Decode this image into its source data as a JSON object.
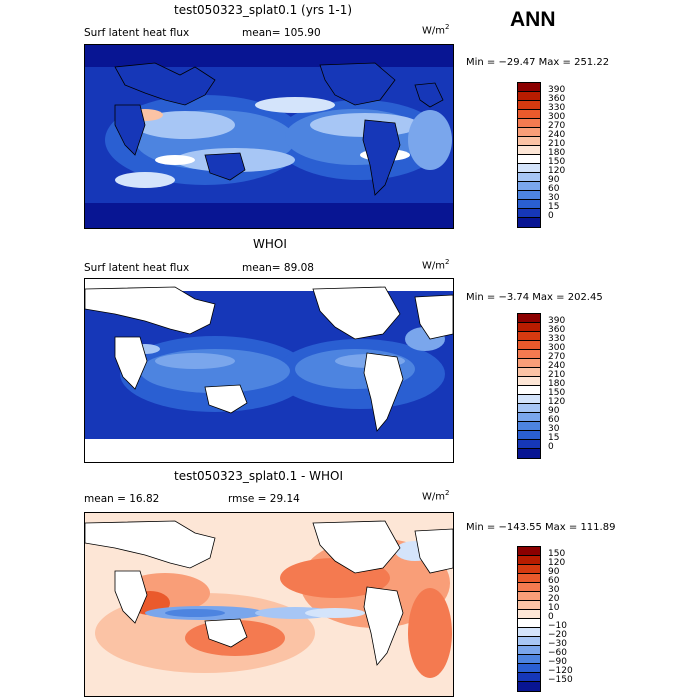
{
  "season": "ANN",
  "units_base": "W/m",
  "units_exp": "2",
  "panels": [
    {
      "title": "test050323_splat0.1 (yrs 1-1)",
      "variable": "Surf latent heat flux",
      "stat_line": "mean= 105.90",
      "minmax": "Min = −29.47 Max = 251.22",
      "colorbar": {
        "levels": [
          "390",
          "360",
          "330",
          "300",
          "270",
          "240",
          "210",
          "180",
          "150",
          "120",
          "90",
          "60",
          "30",
          "15",
          "0"
        ],
        "colors": [
          "#8b0000",
          "#b81c00",
          "#d63a10",
          "#ea5a2c",
          "#f47a50",
          "#f99e78",
          "#fbc3a5",
          "#fde6d6",
          "#ffffff",
          "#d4e4fb",
          "#a7c6f5",
          "#7aa6ec",
          "#4d84e0",
          "#2a5fd2",
          "#1637b8",
          "#081593"
        ]
      }
    },
    {
      "title": "WHOI",
      "variable": "Surf latent heat flux",
      "stat_line": "mean=  89.08",
      "minmax": "Min =  −3.74 Max = 202.45",
      "colorbar": {
        "levels": [
          "390",
          "360",
          "330",
          "300",
          "270",
          "240",
          "210",
          "180",
          "150",
          "120",
          "90",
          "60",
          "30",
          "15",
          "0"
        ],
        "colors": [
          "#8b0000",
          "#b81c00",
          "#d63a10",
          "#ea5a2c",
          "#f47a50",
          "#f99e78",
          "#fbc3a5",
          "#fde6d6",
          "#ffffff",
          "#d4e4fb",
          "#a7c6f5",
          "#7aa6ec",
          "#4d84e0",
          "#2a5fd2",
          "#1637b8",
          "#081593"
        ]
      }
    },
    {
      "title": "test050323_splat0.1 - WHOI",
      "variable": "",
      "stat_line": "mean =  16.82",
      "rmse_line": "rmse =  29.14",
      "minmax": "Min = −143.55 Max = 111.89",
      "colorbar": {
        "levels": [
          "150",
          "120",
          "90",
          "60",
          "30",
          "20",
          "10",
          "0",
          "−10",
          "−20",
          "−30",
          "−60",
          "−90",
          "−120",
          "−150"
        ],
        "colors": [
          "#8b0000",
          "#b81c00",
          "#d63a10",
          "#ea5a2c",
          "#f47a50",
          "#f99e78",
          "#fbc3a5",
          "#fde6d6",
          "#ffffff",
          "#d4e4fb",
          "#a7c6f5",
          "#7aa6ec",
          "#4d84e0",
          "#2a5fd2",
          "#1637b8",
          "#081593"
        ]
      }
    }
  ],
  "chart_data": [
    {
      "type": "heatmap",
      "title": "test050323_splat0.1 (yrs 1-1)",
      "field": "Surf latent heat flux",
      "units": "W/m2",
      "mean": 105.9,
      "min": -29.47,
      "max": 251.22,
      "contour_levels": [
        0,
        15,
        30,
        60,
        90,
        120,
        150,
        180,
        210,
        240,
        270,
        300,
        330,
        360,
        390
      ]
    },
    {
      "type": "heatmap",
      "title": "WHOI",
      "field": "Surf latent heat flux",
      "units": "W/m2",
      "mean": 89.08,
      "min": -3.74,
      "max": 202.45,
      "contour_levels": [
        0,
        15,
        30,
        60,
        90,
        120,
        150,
        180,
        210,
        240,
        270,
        300,
        330,
        360,
        390
      ]
    },
    {
      "type": "heatmap",
      "title": "test050323_splat0.1 - WHOI",
      "units": "W/m2",
      "mean": 16.82,
      "rmse": 29.14,
      "min": -143.55,
      "max": 111.89,
      "contour_levels": [
        -150,
        -120,
        -90,
        -60,
        -30,
        -20,
        -10,
        0,
        10,
        20,
        30,
        60,
        90,
        120,
        150
      ]
    }
  ]
}
